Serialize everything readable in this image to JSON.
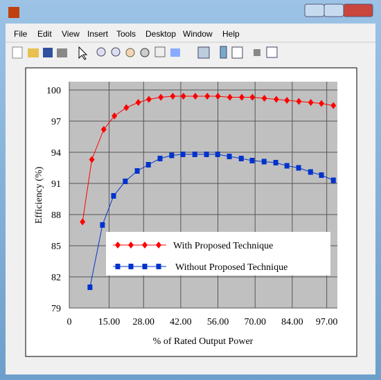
{
  "window": {
    "menu": [
      "File",
      "Edit",
      "View",
      "Insert",
      "Tools",
      "Desktop",
      "Window",
      "Help"
    ]
  },
  "chart_data": {
    "type": "line",
    "xlabel": "% of Rated Output Power",
    "ylabel": "Efficiency (%)",
    "xlim": [
      0,
      101
    ],
    "ylim": [
      79,
      100.8
    ],
    "xticks": [
      0,
      {
        "value": 15,
        "label": "15.00"
      },
      {
        "value": 28,
        "label": "28.00"
      },
      {
        "value": 42,
        "label": "42.00"
      },
      {
        "value": 56,
        "label": "56.00"
      },
      {
        "value": 70,
        "label": "70.00"
      },
      {
        "value": 84,
        "label": "84.00"
      },
      {
        "value": 97,
        "label": "97.00"
      }
    ],
    "yticks": [
      79,
      82,
      85,
      88,
      91,
      94,
      97,
      100
    ],
    "grid": true,
    "series": [
      {
        "name": "With Proposed Technique",
        "color": "#ff0000",
        "marker": "diamond",
        "x": [
          5,
          8.5,
          13,
          17,
          21.5,
          26,
          30,
          34.5,
          39,
          43,
          47.5,
          52,
          56,
          60.5,
          65,
          69,
          73.5,
          78,
          82,
          86.5,
          91,
          95,
          99.5
        ],
        "values": [
          87.3,
          93.3,
          96.2,
          97.5,
          98.3,
          98.8,
          99.1,
          99.3,
          99.4,
          99.4,
          99.4,
          99.4,
          99.4,
          99.3,
          99.3,
          99.3,
          99.2,
          99.1,
          99.0,
          98.9,
          98.8,
          98.7,
          98.5
        ]
      },
      {
        "name": "Without Proposed Technique",
        "color": "#0033cc",
        "marker": "square",
        "x": [
          7.8,
          12.5,
          16.7,
          21.1,
          25.6,
          29.8,
          34.2,
          38.6,
          42.8,
          47.3,
          51.7,
          55.9,
          60.3,
          64.8,
          68.9,
          73.4,
          77.8,
          82,
          86.4,
          90.9,
          95,
          99.5
        ],
        "values": [
          81.0,
          87.0,
          89.8,
          91.2,
          92.2,
          92.8,
          93.4,
          93.7,
          93.8,
          93.8,
          93.8,
          93.8,
          93.6,
          93.4,
          93.2,
          93.1,
          93.0,
          92.7,
          92.5,
          92.1,
          91.8,
          91.3
        ]
      }
    ]
  }
}
